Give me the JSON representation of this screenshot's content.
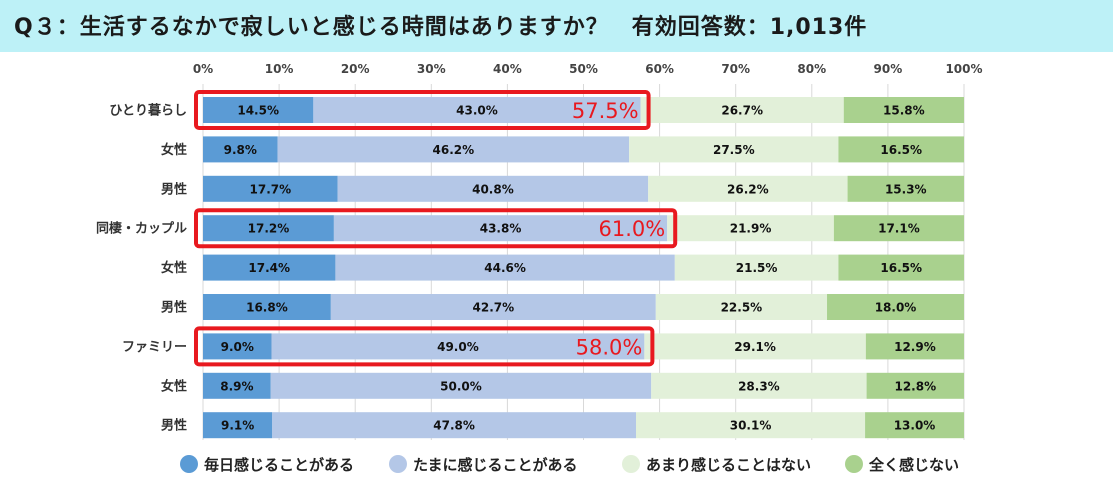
{
  "header": {
    "title": "Q３：生活するなかで寂しいと感じる時間はありますか？　有効回答数：1,013件",
    "background": "#bdf1f7"
  },
  "chart_data": {
    "type": "bar",
    "orientation": "horizontal-stacked-100",
    "xlim": [
      0,
      100
    ],
    "ticks": [
      "0%",
      "10%",
      "20%",
      "30%",
      "40%",
      "50%",
      "60%",
      "70%",
      "80%",
      "90%",
      "100%"
    ],
    "categories": [
      "ひとり暮らし",
      "女性",
      "男性",
      "同棲・カップル",
      "女性",
      "男性",
      "ファミリー",
      "女性",
      "男性"
    ],
    "series": [
      {
        "name": "毎日感じることがある",
        "color": "#5b9bd5",
        "values": [
          14.5,
          9.8,
          17.7,
          17.2,
          17.4,
          16.8,
          9.0,
          8.9,
          9.1
        ]
      },
      {
        "name": "たまに感じることがある",
        "color": "#b4c7e7",
        "values": [
          43.0,
          46.2,
          40.8,
          43.8,
          44.6,
          42.7,
          49.0,
          50.0,
          47.8
        ]
      },
      {
        "name": "あまり感じることはない",
        "color": "#e2f0d9",
        "values": [
          26.7,
          27.5,
          26.2,
          21.9,
          21.5,
          22.5,
          29.1,
          28.3,
          30.1
        ]
      },
      {
        "name": "全く感じない",
        "color": "#a9d18e",
        "values": [
          15.8,
          16.5,
          15.3,
          17.1,
          16.5,
          18.0,
          12.9,
          12.8,
          13.0
        ]
      }
    ],
    "highlights": [
      {
        "row": 0,
        "value": 57.5,
        "label": "57.5%"
      },
      {
        "row": 3,
        "value": 61.0,
        "label": "61.0%"
      },
      {
        "row": 6,
        "value": 58.0,
        "label": "58.0%"
      }
    ],
    "highlight_color": "#e8191f",
    "legend_position": "bottom"
  }
}
